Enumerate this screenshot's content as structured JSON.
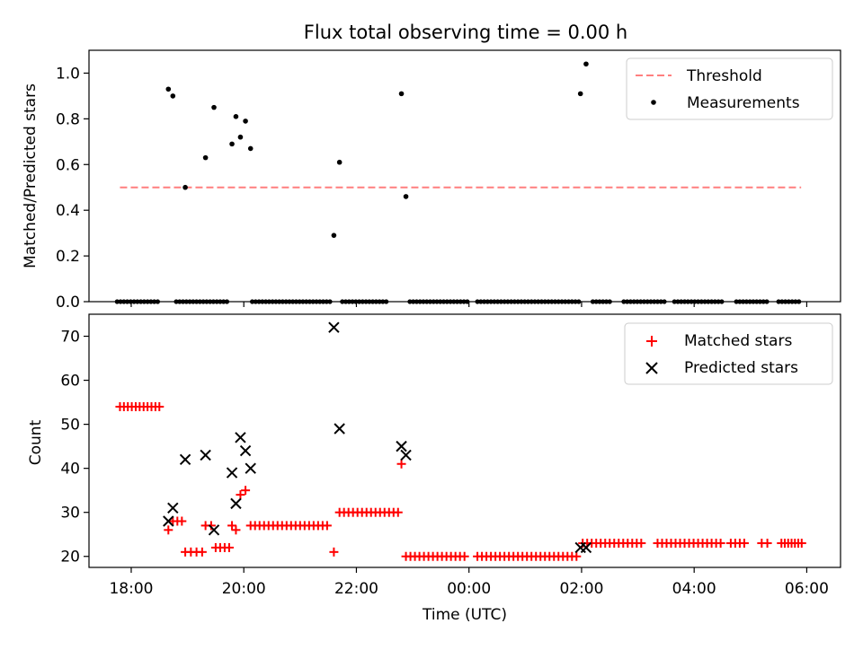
{
  "chart_data": [
    {
      "type": "scatter",
      "title": "Flux total observing time = 0.00 h",
      "xlabel": "",
      "ylabel": "Matched/Predicted stars",
      "xlim": [
        -0.75,
        12.6
      ],
      "ylim": [
        0,
        1.1
      ],
      "yticks": [
        0.0,
        0.2,
        0.4,
        0.6,
        0.8,
        1.0
      ],
      "ytick_labels": [
        "0.0",
        "0.2",
        "0.4",
        "0.6",
        "0.8",
        "1.0"
      ],
      "legend": [
        "Threshold",
        "Measurements"
      ],
      "legend_loc": "upper right",
      "colors": {
        "threshold": "#ff7f7f",
        "measurements": "#000000"
      },
      "threshold": {
        "name": "Threshold",
        "value": 0.5,
        "x": [
          -0.2,
          11.9
        ]
      },
      "measurements": {
        "name": "Measurements",
        "x": [
          0.66,
          0.74,
          0.96,
          1.32,
          1.47,
          1.79,
          1.86,
          1.94,
          2.03,
          2.12,
          3.6,
          3.7,
          4.8,
          4.88,
          7.98,
          8.08
        ],
        "y": [
          0.93,
          0.9,
          0.5,
          0.63,
          0.85,
          0.69,
          0.81,
          0.72,
          0.79,
          0.67,
          0.29,
          0.61,
          0.91,
          0.46,
          0.91,
          1.04
        ]
      },
      "zero_runs": [
        [
          -0.25,
          0.5
        ],
        [
          0.8,
          1.35
        ],
        [
          1.4,
          1.75
        ],
        [
          2.15,
          3.55
        ],
        [
          3.75,
          4.55
        ],
        [
          4.95,
          6.0
        ],
        [
          6.15,
          7.95
        ],
        [
          8.2,
          8.55
        ],
        [
          8.75,
          9.5
        ],
        [
          9.65,
          10.5
        ],
        [
          10.75,
          11.3
        ],
        [
          11.5,
          11.9
        ]
      ],
      "zero_step": 0.06
    },
    {
      "type": "scatter",
      "title": "",
      "xlabel": "Time (UTC)",
      "ylabel": "Count",
      "xlim": [
        -0.75,
        12.6
      ],
      "ylim": [
        17.5,
        75
      ],
      "yticks": [
        20,
        30,
        40,
        50,
        60,
        70
      ],
      "ytick_labels": [
        "20",
        "30",
        "40",
        "50",
        "60",
        "70"
      ],
      "xticks": [
        0,
        2,
        4,
        6,
        8,
        10,
        12
      ],
      "xtick_labels": [
        "18:00",
        "20:00",
        "22:00",
        "00:00",
        "02:00",
        "04:00",
        "06:00"
      ],
      "legend": [
        "Matched stars",
        "Predicted stars"
      ],
      "legend_loc": "upper right",
      "colors": {
        "matched": "#ff0000",
        "predicted": "#000000"
      },
      "matched_runs": [
        {
          "x0": -0.2,
          "x1": 0.5,
          "step": 0.07,
          "y": 54
        },
        {
          "x0": 0.66,
          "x1": 0.66,
          "step": 1,
          "y": 26
        },
        {
          "x0": 0.74,
          "x1": 0.9,
          "step": 0.08,
          "y": 28
        },
        {
          "x0": 0.96,
          "x1": 1.26,
          "step": 0.1,
          "y": 21
        },
        {
          "x0": 1.32,
          "x1": 1.42,
          "step": 0.1,
          "y": 27
        },
        {
          "x0": 1.5,
          "x1": 1.75,
          "step": 0.08,
          "y": 22
        },
        {
          "x0": 1.79,
          "x1": 1.79,
          "step": 1,
          "y": 27
        },
        {
          "x0": 1.86,
          "x1": 1.86,
          "step": 1,
          "y": 26
        },
        {
          "x0": 1.94,
          "x1": 1.94,
          "step": 1,
          "y": 34
        },
        {
          "x0": 2.03,
          "x1": 2.03,
          "step": 1,
          "y": 35
        },
        {
          "x0": 2.12,
          "x1": 3.55,
          "step": 0.08,
          "y": 27
        },
        {
          "x0": 3.6,
          "x1": 3.6,
          "step": 1,
          "y": 21
        },
        {
          "x0": 3.7,
          "x1": 4.75,
          "step": 0.08,
          "y": 30
        },
        {
          "x0": 4.8,
          "x1": 4.8,
          "step": 1,
          "y": 41
        },
        {
          "x0": 4.88,
          "x1": 5.95,
          "step": 0.08,
          "y": 20
        },
        {
          "x0": 6.15,
          "x1": 7.95,
          "step": 0.08,
          "y": 20
        },
        {
          "x0": 8.02,
          "x1": 9.1,
          "step": 0.08,
          "y": 23
        },
        {
          "x0": 9.35,
          "x1": 10.5,
          "step": 0.08,
          "y": 23
        },
        {
          "x0": 10.65,
          "x1": 10.9,
          "step": 0.08,
          "y": 23
        },
        {
          "x0": 11.2,
          "x1": 11.3,
          "step": 0.1,
          "y": 23
        },
        {
          "x0": 11.55,
          "x1": 11.95,
          "step": 0.06,
          "y": 23
        }
      ],
      "predicted": {
        "name": "Predicted stars",
        "x": [
          0.66,
          0.74,
          0.96,
          1.32,
          1.47,
          1.79,
          1.86,
          1.94,
          2.03,
          2.12,
          3.6,
          3.7,
          4.8,
          4.88,
          7.98,
          8.08
        ],
        "y": [
          28,
          31,
          42,
          43,
          26,
          39,
          32,
          47,
          44,
          40,
          72,
          49,
          45,
          43,
          22,
          22
        ]
      }
    }
  ]
}
